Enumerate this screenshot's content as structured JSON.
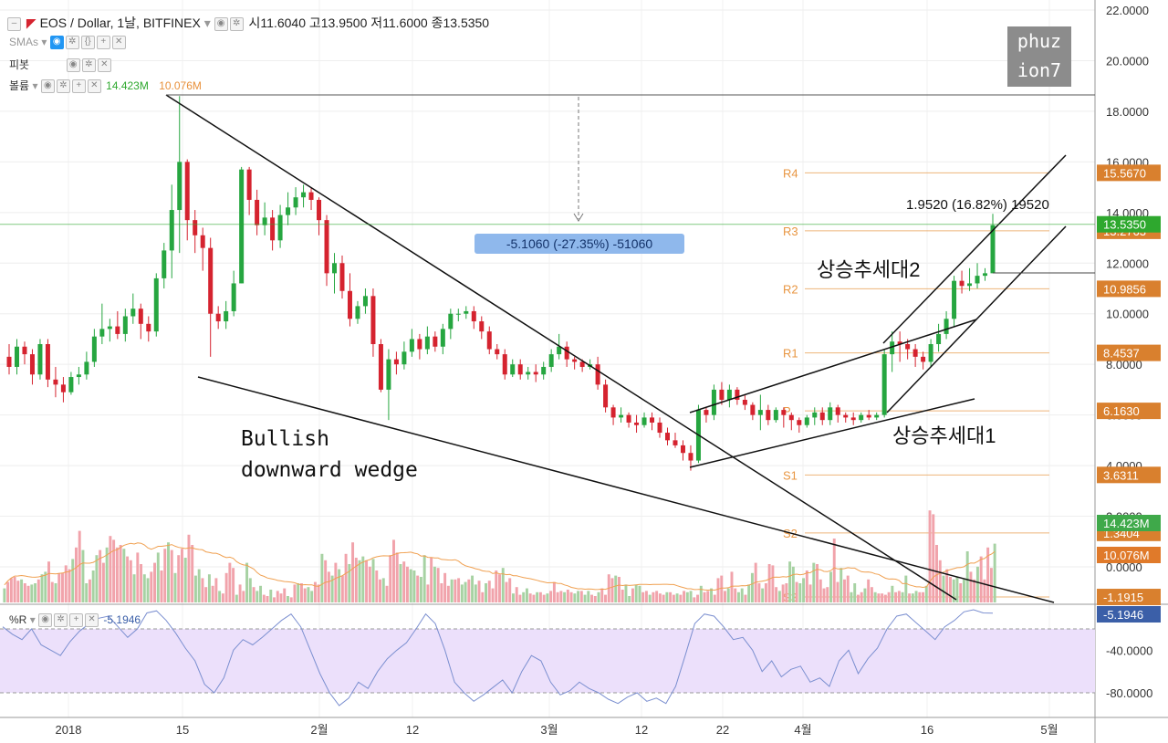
{
  "header": {
    "title": "EOS / Dollar, 1날, BITFINEX",
    "ohlc": [
      "시11.6040",
      "고13.9500",
      "저11.6000",
      "종13.5350"
    ],
    "smas_label": "SMAs",
    "pivot_label": "피봇",
    "volume_label": "볼륨",
    "volume_value": "14.423M",
    "volume_ma": "10.076M",
    "wpr_label": "%R",
    "wpr_value": "-5.1946"
  },
  "watermark": [
    "phuz",
    "ion7"
  ],
  "annotations": {
    "wedge_title": [
      "Bullish",
      "downward wedge"
    ],
    "drop_measure": "-5.1060 (-27.35%) -51060",
    "rise_measure": "1.9520 (16.82%) 19520",
    "channel1": "상승추세대1",
    "channel2": "상승추세대2"
  },
  "pivots": [
    {
      "name": "R4",
      "value": 15.567,
      "label": "15.5670"
    },
    {
      "name": "R3",
      "value": 13.2763,
      "label": "13.2763"
    },
    {
      "name": "R2",
      "value": 10.9856,
      "label": "10.9856"
    },
    {
      "name": "R1",
      "value": 8.4537,
      "label": "8.4537"
    },
    {
      "name": "P",
      "value": 6.163,
      "label": "6.1630"
    },
    {
      "name": "S1",
      "value": 3.6311,
      "label": "3.6311"
    },
    {
      "name": "S2",
      "value": 1.3404,
      "label": "1.3404"
    },
    {
      "name": "S3",
      "value": -1.1915,
      "label": "-1.1915"
    }
  ],
  "price_axis": {
    "ticks": [
      "22.0000",
      "20.0000",
      "18.0000",
      "16.0000",
      "14.0000",
      "12.0000",
      "10.0000",
      "8.0000",
      "6.0000",
      "4.0000",
      "2.0000",
      "0.0000"
    ],
    "last_price": "13.5350",
    "volume_badge": "14.423M",
    "volume_ma_badge": "10.076M"
  },
  "wpr_axis": {
    "ticks": [
      "-40.0000",
      "-80.0000"
    ],
    "badge": "-5.1946"
  },
  "time_axis": [
    "2018",
    "15",
    "2월",
    "12",
    "3월",
    "12",
    "22",
    "4월",
    "16",
    "5월"
  ],
  "colors": {
    "up": "#26a640",
    "down": "#d5232f",
    "vol_up": "#a7d2a3",
    "vol_down": "#f1a3ab",
    "pivot": "#e89642",
    "ma": "#f0a050",
    "wpr_band": "#ece0fb",
    "wpr_line": "#7b8fd0",
    "last": "#2ea82e"
  },
  "chart_data": [
    {
      "type": "candlestick",
      "title": "EOS / Dollar, 1날, BITFINEX",
      "ylim": [
        -2,
        22
      ],
      "candles": [
        [
          8.3,
          7.9,
          8.8,
          7.6
        ],
        [
          7.9,
          8.7,
          9.0,
          7.6
        ],
        [
          8.7,
          8.4,
          8.9,
          8.0
        ],
        [
          8.4,
          7.6,
          8.6,
          7.2
        ],
        [
          7.6,
          8.8,
          9.0,
          7.4
        ],
        [
          8.8,
          7.4,
          9.0,
          7.1
        ],
        [
          7.4,
          7.2,
          7.9,
          6.7
        ],
        [
          7.2,
          6.9,
          7.5,
          6.5
        ],
        [
          6.9,
          7.5,
          7.7,
          6.8
        ],
        [
          7.5,
          7.6,
          7.9,
          7.2
        ],
        [
          7.6,
          8.1,
          8.5,
          7.4
        ],
        [
          8.1,
          9.1,
          9.4,
          7.9
        ],
        [
          9.1,
          9.4,
          10.4,
          8.8
        ],
        [
          9.4,
          9.5,
          9.8,
          8.9
        ],
        [
          9.5,
          9.2,
          10.1,
          9.0
        ],
        [
          9.2,
          9.9,
          10.2,
          8.9
        ],
        [
          9.9,
          10.2,
          10.8,
          9.6
        ],
        [
          10.2,
          9.6,
          10.4,
          9.0
        ],
        [
          9.6,
          9.3,
          9.9,
          8.9
        ],
        [
          9.3,
          11.4,
          11.6,
          9.1
        ],
        [
          11.4,
          12.5,
          12.8,
          11.0
        ],
        [
          12.5,
          14.1,
          15.1,
          11.4
        ],
        [
          14.1,
          16.0,
          18.6,
          12.4
        ],
        [
          16.0,
          13.7,
          16.1,
          12.9
        ],
        [
          13.7,
          13.1,
          14.1,
          12.4
        ],
        [
          13.1,
          12.6,
          13.4,
          11.7
        ],
        [
          12.6,
          10.0,
          13.0,
          8.3
        ],
        [
          10.0,
          9.7,
          10.3,
          9.4
        ],
        [
          9.7,
          10.1,
          10.5,
          9.4
        ],
        [
          10.1,
          11.2,
          11.7,
          9.9
        ],
        [
          11.2,
          15.7,
          15.8,
          11.2
        ],
        [
          15.7,
          14.5,
          15.8,
          13.9
        ],
        [
          14.5,
          13.5,
          14.9,
          13.1
        ],
        [
          13.5,
          13.8,
          14.4,
          13.1
        ],
        [
          13.8,
          12.9,
          14.1,
          12.5
        ],
        [
          12.9,
          13.9,
          14.3,
          12.6
        ],
        [
          13.9,
          14.2,
          14.8,
          13.5
        ],
        [
          14.2,
          14.6,
          15.0,
          13.9
        ],
        [
          14.6,
          14.8,
          15.1,
          14.2
        ],
        [
          14.8,
          14.5,
          15.0,
          14.1
        ],
        [
          14.5,
          13.7,
          14.6,
          13.1
        ],
        [
          13.7,
          11.6,
          13.9,
          11.1
        ],
        [
          11.6,
          12.0,
          12.4,
          10.8
        ],
        [
          12.0,
          10.9,
          12.3,
          10.6
        ],
        [
          10.9,
          9.8,
          11.6,
          9.5
        ],
        [
          9.8,
          10.3,
          10.5,
          9.6
        ],
        [
          10.3,
          10.7,
          11.0,
          10.0
        ],
        [
          10.7,
          8.8,
          11.0,
          8.3
        ],
        [
          8.8,
          7.0,
          9.0,
          6.9
        ],
        [
          7.0,
          8.2,
          8.6,
          5.8
        ],
        [
          8.2,
          8.0,
          8.5,
          7.6
        ],
        [
          8.0,
          8.5,
          8.9,
          7.8
        ],
        [
          8.5,
          9.0,
          9.4,
          8.3
        ],
        [
          9.0,
          8.6,
          9.2,
          8.2
        ],
        [
          8.6,
          9.1,
          9.5,
          8.4
        ],
        [
          9.1,
          8.7,
          9.3,
          8.5
        ],
        [
          8.7,
          9.4,
          9.6,
          8.4
        ],
        [
          9.4,
          10.0,
          10.2,
          9.0
        ],
        [
          10.0,
          10.0,
          10.2,
          9.7
        ],
        [
          10.0,
          10.1,
          10.3,
          9.8
        ],
        [
          10.1,
          9.7,
          10.3,
          9.4
        ],
        [
          9.7,
          9.3,
          9.9,
          9.0
        ],
        [
          9.3,
          8.6,
          9.5,
          8.4
        ],
        [
          8.6,
          8.4,
          8.8,
          8.2
        ],
        [
          8.4,
          7.6,
          8.6,
          7.4
        ],
        [
          7.6,
          8.0,
          8.2,
          7.5
        ],
        [
          8.0,
          7.6,
          8.2,
          7.4
        ],
        [
          7.6,
          7.7,
          7.9,
          7.4
        ],
        [
          7.7,
          7.6,
          8.0,
          7.3
        ],
        [
          7.6,
          7.9,
          8.1,
          7.4
        ],
        [
          7.9,
          8.4,
          8.6,
          7.7
        ],
        [
          8.4,
          8.7,
          9.2,
          8.2
        ],
        [
          8.7,
          8.2,
          8.9,
          7.9
        ],
        [
          8.2,
          8.1,
          8.3,
          7.8
        ],
        [
          8.1,
          7.9,
          8.2,
          7.7
        ],
        [
          7.9,
          8.0,
          8.2,
          7.8
        ],
        [
          8.0,
          7.2,
          8.3,
          7.0
        ],
        [
          7.2,
          6.3,
          7.4,
          6.1
        ],
        [
          6.3,
          5.9,
          6.4,
          5.6
        ],
        [
          5.9,
          6.0,
          6.3,
          5.7
        ],
        [
          6.0,
          5.7,
          6.1,
          5.5
        ],
        [
          5.7,
          5.6,
          6.0,
          5.3
        ],
        [
          5.6,
          5.9,
          6.1,
          5.5
        ],
        [
          5.9,
          5.7,
          6.1,
          5.4
        ],
        [
          5.7,
          5.3,
          5.9,
          5.1
        ],
        [
          5.3,
          5.0,
          5.5,
          4.8
        ],
        [
          5.0,
          4.8,
          5.3,
          4.7
        ],
        [
          4.8,
          4.5,
          5.0,
          4.2
        ],
        [
          4.5,
          4.2,
          4.8,
          3.8
        ],
        [
          4.2,
          6.2,
          6.4,
          4.1
        ],
        [
          6.2,
          6.0,
          6.3,
          5.7
        ],
        [
          6.0,
          7.0,
          7.2,
          5.8
        ],
        [
          7.0,
          6.6,
          7.3,
          6.4
        ],
        [
          6.6,
          7.0,
          7.2,
          6.3
        ],
        [
          7.0,
          6.6,
          7.1,
          6.4
        ],
        [
          6.6,
          6.4,
          6.8,
          6.2
        ],
        [
          6.4,
          6.0,
          6.5,
          5.8
        ],
        [
          6.0,
          6.2,
          6.8,
          5.4
        ],
        [
          6.2,
          5.8,
          6.4,
          5.6
        ],
        [
          5.8,
          6.2,
          6.3,
          5.7
        ],
        [
          6.2,
          6.0,
          6.3,
          5.5
        ],
        [
          6.0,
          5.8,
          6.1,
          5.4
        ],
        [
          5.8,
          5.6,
          5.9,
          5.3
        ],
        [
          5.6,
          5.9,
          6.0,
          5.5
        ],
        [
          5.9,
          6.1,
          6.3,
          5.6
        ],
        [
          6.1,
          5.8,
          6.3,
          5.6
        ],
        [
          5.8,
          6.3,
          6.5,
          5.6
        ],
        [
          6.3,
          6.0,
          6.4,
          5.7
        ],
        [
          6.0,
          5.9,
          6.1,
          5.7
        ],
        [
          5.9,
          5.8,
          6.1,
          5.6
        ],
        [
          5.8,
          6.0,
          6.1,
          5.7
        ],
        [
          6.0,
          5.9,
          6.2,
          5.8
        ],
        [
          5.9,
          6.0,
          6.1,
          5.8
        ],
        [
          6.0,
          8.4,
          8.6,
          5.9
        ],
        [
          8.4,
          8.9,
          9.3,
          7.7
        ],
        [
          8.9,
          8.8,
          9.3,
          8.1
        ],
        [
          8.8,
          8.6,
          9.0,
          8.2
        ],
        [
          8.6,
          8.3,
          8.8,
          7.9
        ],
        [
          8.3,
          8.1,
          8.5,
          7.8
        ],
        [
          8.1,
          8.8,
          9.0,
          7.9
        ],
        [
          8.8,
          9.2,
          9.6,
          8.5
        ],
        [
          9.2,
          9.8,
          10.1,
          9.0
        ],
        [
          9.8,
          11.3,
          11.5,
          9.5
        ],
        [
          11.3,
          11.1,
          11.7,
          10.8
        ],
        [
          11.1,
          11.2,
          11.8,
          10.9
        ],
        [
          11.2,
          11.5,
          12.0,
          11.0
        ],
        [
          11.5,
          11.6,
          11.8,
          11.3
        ],
        [
          11.6,
          13.5,
          13.95,
          11.6
        ]
      ],
      "volume": [
        1.1,
        1.6,
        1.9,
        2.0,
        1.7,
        1.8,
        1.5,
        1.3,
        1.4,
        1.5,
        1.8,
        2.2,
        2.4,
        3.2,
        1.6,
        1.5,
        2.3,
        2.3,
        2.9,
        2.6,
        3.4,
        4.3,
        5.6,
        4.1,
        1.5,
        1.8,
        2.5,
        3.7,
        4.1,
        3.1,
        4.3,
        5.2,
        4.9,
        4.3,
        4.5,
        4.2,
        3.6,
        3.3,
        2.2,
        3.9,
        3.0,
        2.2,
        1.9,
        2.4,
        3.1,
        3.9,
        2.5,
        4.2,
        4.7,
        4.1,
        2.3,
        3.7,
        4.2,
        3.5,
        5.3,
        4.5,
        2.1,
        2.6,
        1.9,
        1.2,
        2.2,
        1.3,
        1.9,
        0.9,
        0.7,
        2.3,
        3.1,
        2.7,
        0.6,
        1.4,
        0.9,
        3.1,
        1.9,
        1.2,
        0.9,
        1.3,
        0.6,
        0.5,
        1.0,
        0.4,
        0.9,
        0.7,
        1.1,
        0.5,
        0.4,
        1.4,
        1.5,
        1.5,
        1.1,
        1.2,
        0.9,
        1.6,
        1.4,
        3.8,
        3.3,
        2.4,
        2.1,
        3.1,
        2.6,
        2.1,
        3.8,
        3.0,
        4.7,
        3.5,
        3.3,
        3.6,
        3.3,
        2.8,
        3.4,
        2.5,
        1.8,
        1.9,
        1.3,
        3.7,
        4.9,
        3.9,
        3.0,
        3.2,
        2.8,
        2.6,
        2.5,
        2.1,
        2.0,
        3.7,
        1.4,
        3.5,
        2.8,
        2.7,
        1.5,
        2.3,
        1.3,
        1.8,
        1.8,
        1.9,
        1.4,
        1.6,
        1.8,
        2.1,
        1.4,
        1.7,
        0.8,
        1.5,
        1.7,
        1.1,
        2.5,
        2.2,
        2.7,
        1.6,
        1.9,
        0.7,
        1.2,
        0.6,
        0.8,
        1.1,
        0.7,
        0.6,
        0.8,
        0.8,
        0.6,
        0.7,
        0.9,
        1.6,
        0.8,
        0.9,
        0.8,
        1.0,
        0.8,
        0.7,
        0.9,
        0.9,
        0.6,
        0.9,
        0.6,
        0.5,
        0.8,
        1.1,
        0.6,
        2.2,
        1.9,
        2.1,
        2.0,
        1.0,
        1.4,
        0.5,
        1.1,
        1.4,
        1.3,
        0.8,
        0.9,
        0.6,
        0.8,
        0.9,
        0.7,
        0.6,
        0.8,
        0.8,
        0.6,
        0.7,
        0.6,
        0.9,
        0.8,
        0.9,
        0.4,
        0.6,
        1.3,
        0.8,
        0.9,
        1.1,
        0.6,
        1.9,
        2.1,
        0.9,
        1.1,
        2.4,
        1.1,
        0.8,
        1.1,
        0.6,
        1.4,
        2.3,
        3.1,
        1.5,
        1.1,
        1.5,
        3.0,
        2.9,
        1.2,
        0.9,
        1.4,
        1.5,
        3.2,
        2.8,
        1.6,
        1.5,
        1.9,
        2.5,
        1.4,
        3.1,
        3.0,
        1.8,
        1.1,
        1.2,
        2.4,
        5.0,
        1.6,
        2.7,
        1.8,
        2.1,
        0.8,
        1.5,
        0.6,
        0.8,
        1.1,
        1.8,
        1.2,
        0.8,
        0.7,
        0.7,
        0.6,
        0.8,
        1.3,
        0.8,
        0.9,
        0.8,
        2.1,
        0.7,
        0.7,
        0.9,
        0.8,
        0.8,
        1.3,
        7.2,
        6.9,
        4.5,
        3.3,
        2.1,
        2.6,
        2.0,
        1.8,
        2.0,
        1.5,
        1.8,
        4.0,
        2.4,
        1.8,
        2.8,
        3.6,
        1.8,
        4.3,
        2.7,
        4.6
      ],
      "wpr": [
        -18,
        -25,
        -30,
        -20,
        -35,
        -40,
        -45,
        -32,
        -22,
        -15,
        -10,
        -8,
        -18,
        -28,
        -20,
        -5,
        -3,
        -12,
        -24,
        -38,
        -50,
        -72,
        -80,
        -66,
        -40,
        -30,
        -35,
        -28,
        -20,
        -12,
        -6,
        -18,
        -40,
        -62,
        -80,
        -92,
        -85,
        -70,
        -76,
        -60,
        -48,
        -40,
        -33,
        -20,
        -6,
        -15,
        -40,
        -70,
        -80,
        -88,
        -82,
        -75,
        -68,
        -80,
        -60,
        -45,
        -50,
        -70,
        -82,
        -78,
        -70,
        -76,
        -80,
        -86,
        -90,
        -84,
        -80,
        -88,
        -85,
        -90,
        -74,
        -45,
        -15,
        -6,
        -8,
        -18,
        -30,
        -28,
        -40,
        -60,
        -50,
        -65,
        -58,
        -55,
        -70,
        -66,
        -74,
        -50,
        -40,
        -62,
        -48,
        -38,
        -20,
        -8,
        -6,
        -14,
        -22,
        -30,
        -18,
        -12,
        -4,
        -2,
        -5,
        -5.19
      ]
    }
  ]
}
